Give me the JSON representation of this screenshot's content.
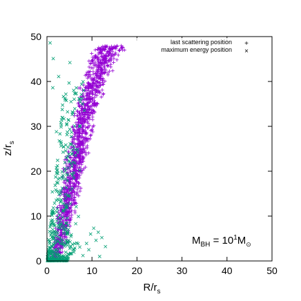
{
  "chart_data": {
    "type": "scatter",
    "xlabel": "R/r",
    "xlabel_sub": "s",
    "ylabel": "z/r",
    "ylabel_sub": "s",
    "xlim": [
      0,
      50
    ],
    "ylim": [
      0,
      50
    ],
    "xticks": [
      "0",
      "10",
      "20",
      "30",
      "40",
      "50"
    ],
    "yticks": [
      "0",
      "10",
      "20",
      "30",
      "40",
      "50"
    ],
    "grid": false,
    "legend_position": "top-right",
    "annotation": {
      "prefix": "M",
      "prefix_sub": "BH",
      "middle": " = 10",
      "exponent": "1",
      "suffix": "M",
      "suffix_sub": "⊙"
    },
    "series": [
      {
        "name": "last scattering position",
        "marker": "+",
        "color": "#9400d3",
        "band": [
          [
            0,
            0.4,
            3.0
          ],
          [
            5,
            1.0,
            5.2
          ],
          [
            10,
            1.4,
            6.6
          ],
          [
            15,
            2.0,
            8.2
          ],
          [
            20,
            2.8,
            9.4
          ],
          [
            25,
            3.6,
            10.4
          ],
          [
            30,
            4.5,
            11.4
          ],
          [
            35,
            5.4,
            12.6
          ],
          [
            40,
            6.5,
            14.6
          ],
          [
            45,
            7.5,
            17.5
          ],
          [
            48,
            8.5,
            20.0
          ]
        ],
        "count": 1300
      },
      {
        "name": "maximum energy position",
        "marker": "×",
        "color": "#009e73",
        "band": [
          [
            0,
            0.1,
            4.5
          ],
          [
            3,
            0.2,
            7.5
          ],
          [
            6,
            0.5,
            5.5
          ],
          [
            10,
            1.0,
            4.5
          ],
          [
            15,
            1.6,
            5.2
          ],
          [
            22,
            2.2,
            6.5
          ],
          [
            30,
            3.0,
            8.0
          ],
          [
            40,
            4.0,
            9.0
          ]
        ],
        "count": 420,
        "outliers": [
          [
            10.4,
            7.3
          ],
          [
            11.4,
            6.4
          ],
          [
            9.7,
            6.0
          ],
          [
            12.2,
            5.2
          ],
          [
            8.8,
            3.9
          ],
          [
            10.9,
            4.6
          ],
          [
            13.0,
            3.2
          ],
          [
            9.3,
            2.5
          ],
          [
            6.4,
            8.3
          ],
          [
            7.0,
            9.9
          ],
          [
            5.2,
            12.8
          ],
          [
            8.0,
            1.2
          ],
          [
            11.7,
            1.0
          ],
          [
            4.7,
            14.5
          ],
          [
            6.5,
            12.1
          ],
          [
            3.7,
            25.4
          ],
          [
            4.3,
            23.0
          ],
          [
            3.4,
            18.7
          ],
          [
            2.4,
            19.5
          ],
          [
            1.3,
            38.6
          ],
          [
            2.6,
            41.1
          ],
          [
            1.4,
            45.1
          ],
          [
            0.7,
            48.6
          ],
          [
            5.1,
            44.2
          ],
          [
            3.2,
            30.3
          ],
          [
            2.1,
            28.8
          ],
          [
            6.0,
            18.5
          ],
          [
            5.6,
            16.2
          ],
          [
            7.3,
            20.2
          ],
          [
            1.2,
            15.4
          ]
        ]
      }
    ]
  }
}
